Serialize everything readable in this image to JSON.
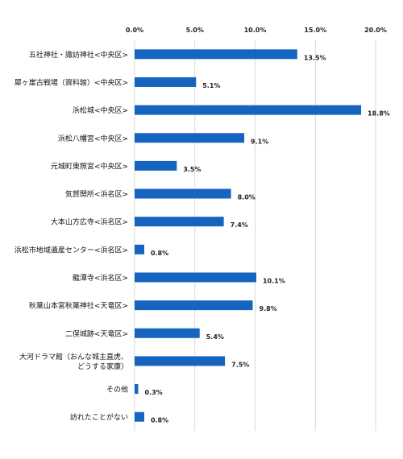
{
  "chart_data": {
    "type": "bar",
    "orientation": "horizontal",
    "title": "",
    "xlabel": "",
    "ylabel": "",
    "xlim": [
      0,
      20
    ],
    "x_ticks": [
      "0.0%",
      "5.0%",
      "10.0%",
      "15.0%",
      "20.0%"
    ],
    "x_tick_values": [
      0,
      5,
      10,
      15,
      20
    ],
    "tick_position": "top",
    "grid": true,
    "legend": "none",
    "bar_color": "#1565C0",
    "grid_color": "#D9D9D9",
    "categories": [
      [
        "五社神社・諏訪神社<中央区>"
      ],
      [
        "犀ヶ崖古戦場（資料館）<中央区>"
      ],
      [
        "浜松城<中央区>"
      ],
      [
        "浜松八幡宮<中央区>"
      ],
      [
        "元城町東照宮<中央区>"
      ],
      [
        "気賀関所<浜名区>"
      ],
      [
        "大本山方広寺<浜名区>"
      ],
      [
        "浜松市地域遺産センター<浜名区>"
      ],
      [
        "龍潭寺<浜名区>"
      ],
      [
        "秋葉山本宮秋葉神社<天竜区>"
      ],
      [
        "二俣城跡<天竜区>"
      ],
      [
        "大河ドラマ館（おんな城主直虎、",
        "どうする家康）"
      ],
      [
        "その他"
      ],
      [
        "訪れたことがない"
      ]
    ],
    "values": [
      13.5,
      5.1,
      18.8,
      9.1,
      3.5,
      8.0,
      7.4,
      0.8,
      10.1,
      9.8,
      5.4,
      7.5,
      0.3,
      0.8
    ],
    "value_labels": [
      "13.5%",
      "5.1%",
      "18.8%",
      "9.1%",
      "3.5%",
      "8.0%",
      "7.4%",
      "0.8%",
      "10.1%",
      "9.8%",
      "5.4%",
      "7.5%",
      "0.3%",
      "0.8%"
    ]
  }
}
